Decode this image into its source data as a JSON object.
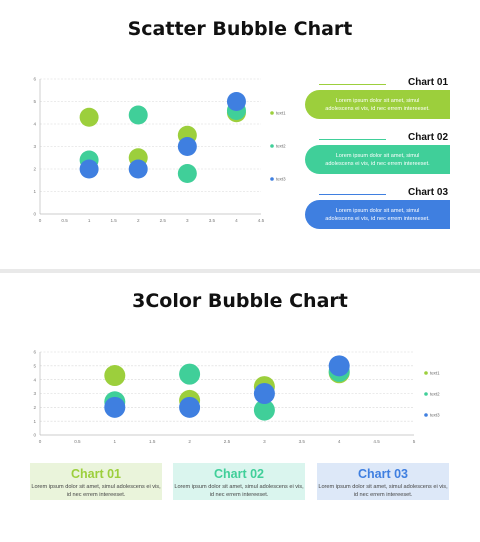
{
  "slides": [
    {
      "title": "Scatter Bubble Chart",
      "callouts": [
        {
          "title": "Chart 01",
          "text": "Lorem ipsum dolor sit amet, simul adolescens ei vis, id nec errem intereeset."
        },
        {
          "title": "Chart 02",
          "text": "Lorem ipsum dolor sit amet, simul adolescens ei vis, id nec errem intereeset."
        },
        {
          "title": "Chart 03",
          "text": "Lorem ipsum dolor sit amet, simul adolescens ei vis, id nec errem intereeset."
        }
      ]
    },
    {
      "title": "3Color Bubble Chart",
      "cards": [
        {
          "title": "Chart 01",
          "text": "Lorem ipsum dolor sit amet, simul adolescens ei vis, id nec errem intereeset."
        },
        {
          "title": "Chart 02",
          "text": "Lorem ipsum dolor sit amet, simul adolescens ei vis, id nec errem intereeset."
        },
        {
          "title": "Chart 03",
          "text": "Lorem ipsum dolor sit amet, simul adolescens ei vis, id nec errem intereeset."
        }
      ]
    }
  ],
  "colors": {
    "green": "#9ccf3c",
    "teal": "#40cf99",
    "blue": "#3f7fe0",
    "card_green_bg": "#eaf4db",
    "card_teal_bg": "#daf5ee",
    "card_blue_bg": "#dde8f8"
  },
  "chart_data": [
    {
      "type": "scatter",
      "title": "",
      "xlim": [
        0,
        4.5
      ],
      "ylim": [
        0,
        6
      ],
      "x_ticks": [
        "0",
        "0.5",
        "1",
        "1.5",
        "2",
        "2.5",
        "3",
        "3.5",
        "4",
        "4.5"
      ],
      "y_ticks": [
        "0",
        "1",
        "2",
        "3",
        "4",
        "5",
        "6"
      ],
      "grid": true,
      "legend": "right",
      "series": [
        {
          "name": "text1",
          "color": "green",
          "x": [
            1,
            2,
            3,
            4
          ],
          "y": [
            4.3,
            2.5,
            3.5,
            4.5
          ]
        },
        {
          "name": "text2",
          "color": "teal",
          "x": [
            1,
            2,
            3,
            4
          ],
          "y": [
            2.4,
            4.4,
            1.8,
            4.6
          ]
        },
        {
          "name": "text3",
          "color": "blue",
          "x": [
            1,
            2,
            3,
            4
          ],
          "y": [
            2.0,
            2.0,
            3.0,
            5.0
          ]
        }
      ]
    },
    {
      "type": "scatter",
      "title": "",
      "xlim": [
        0,
        5
      ],
      "ylim": [
        0,
        6
      ],
      "x_ticks": [
        "0",
        "0.5",
        "1",
        "1.5",
        "2",
        "2.5",
        "3",
        "3.5",
        "4",
        "4.5",
        "5"
      ],
      "y_ticks": [
        "0",
        "1",
        "2",
        "3",
        "4",
        "5",
        "6"
      ],
      "grid": true,
      "legend": "right",
      "series": [
        {
          "name": "text1",
          "color": "green",
          "x": [
            1,
            2,
            3,
            4
          ],
          "y": [
            4.3,
            2.5,
            3.5,
            4.5
          ]
        },
        {
          "name": "text2",
          "color": "teal",
          "x": [
            1,
            2,
            3,
            4
          ],
          "y": [
            2.4,
            4.4,
            1.8,
            4.6
          ]
        },
        {
          "name": "text3",
          "color": "blue",
          "x": [
            1,
            2,
            3,
            4
          ],
          "y": [
            2.0,
            2.0,
            3.0,
            5.0
          ]
        }
      ]
    }
  ]
}
